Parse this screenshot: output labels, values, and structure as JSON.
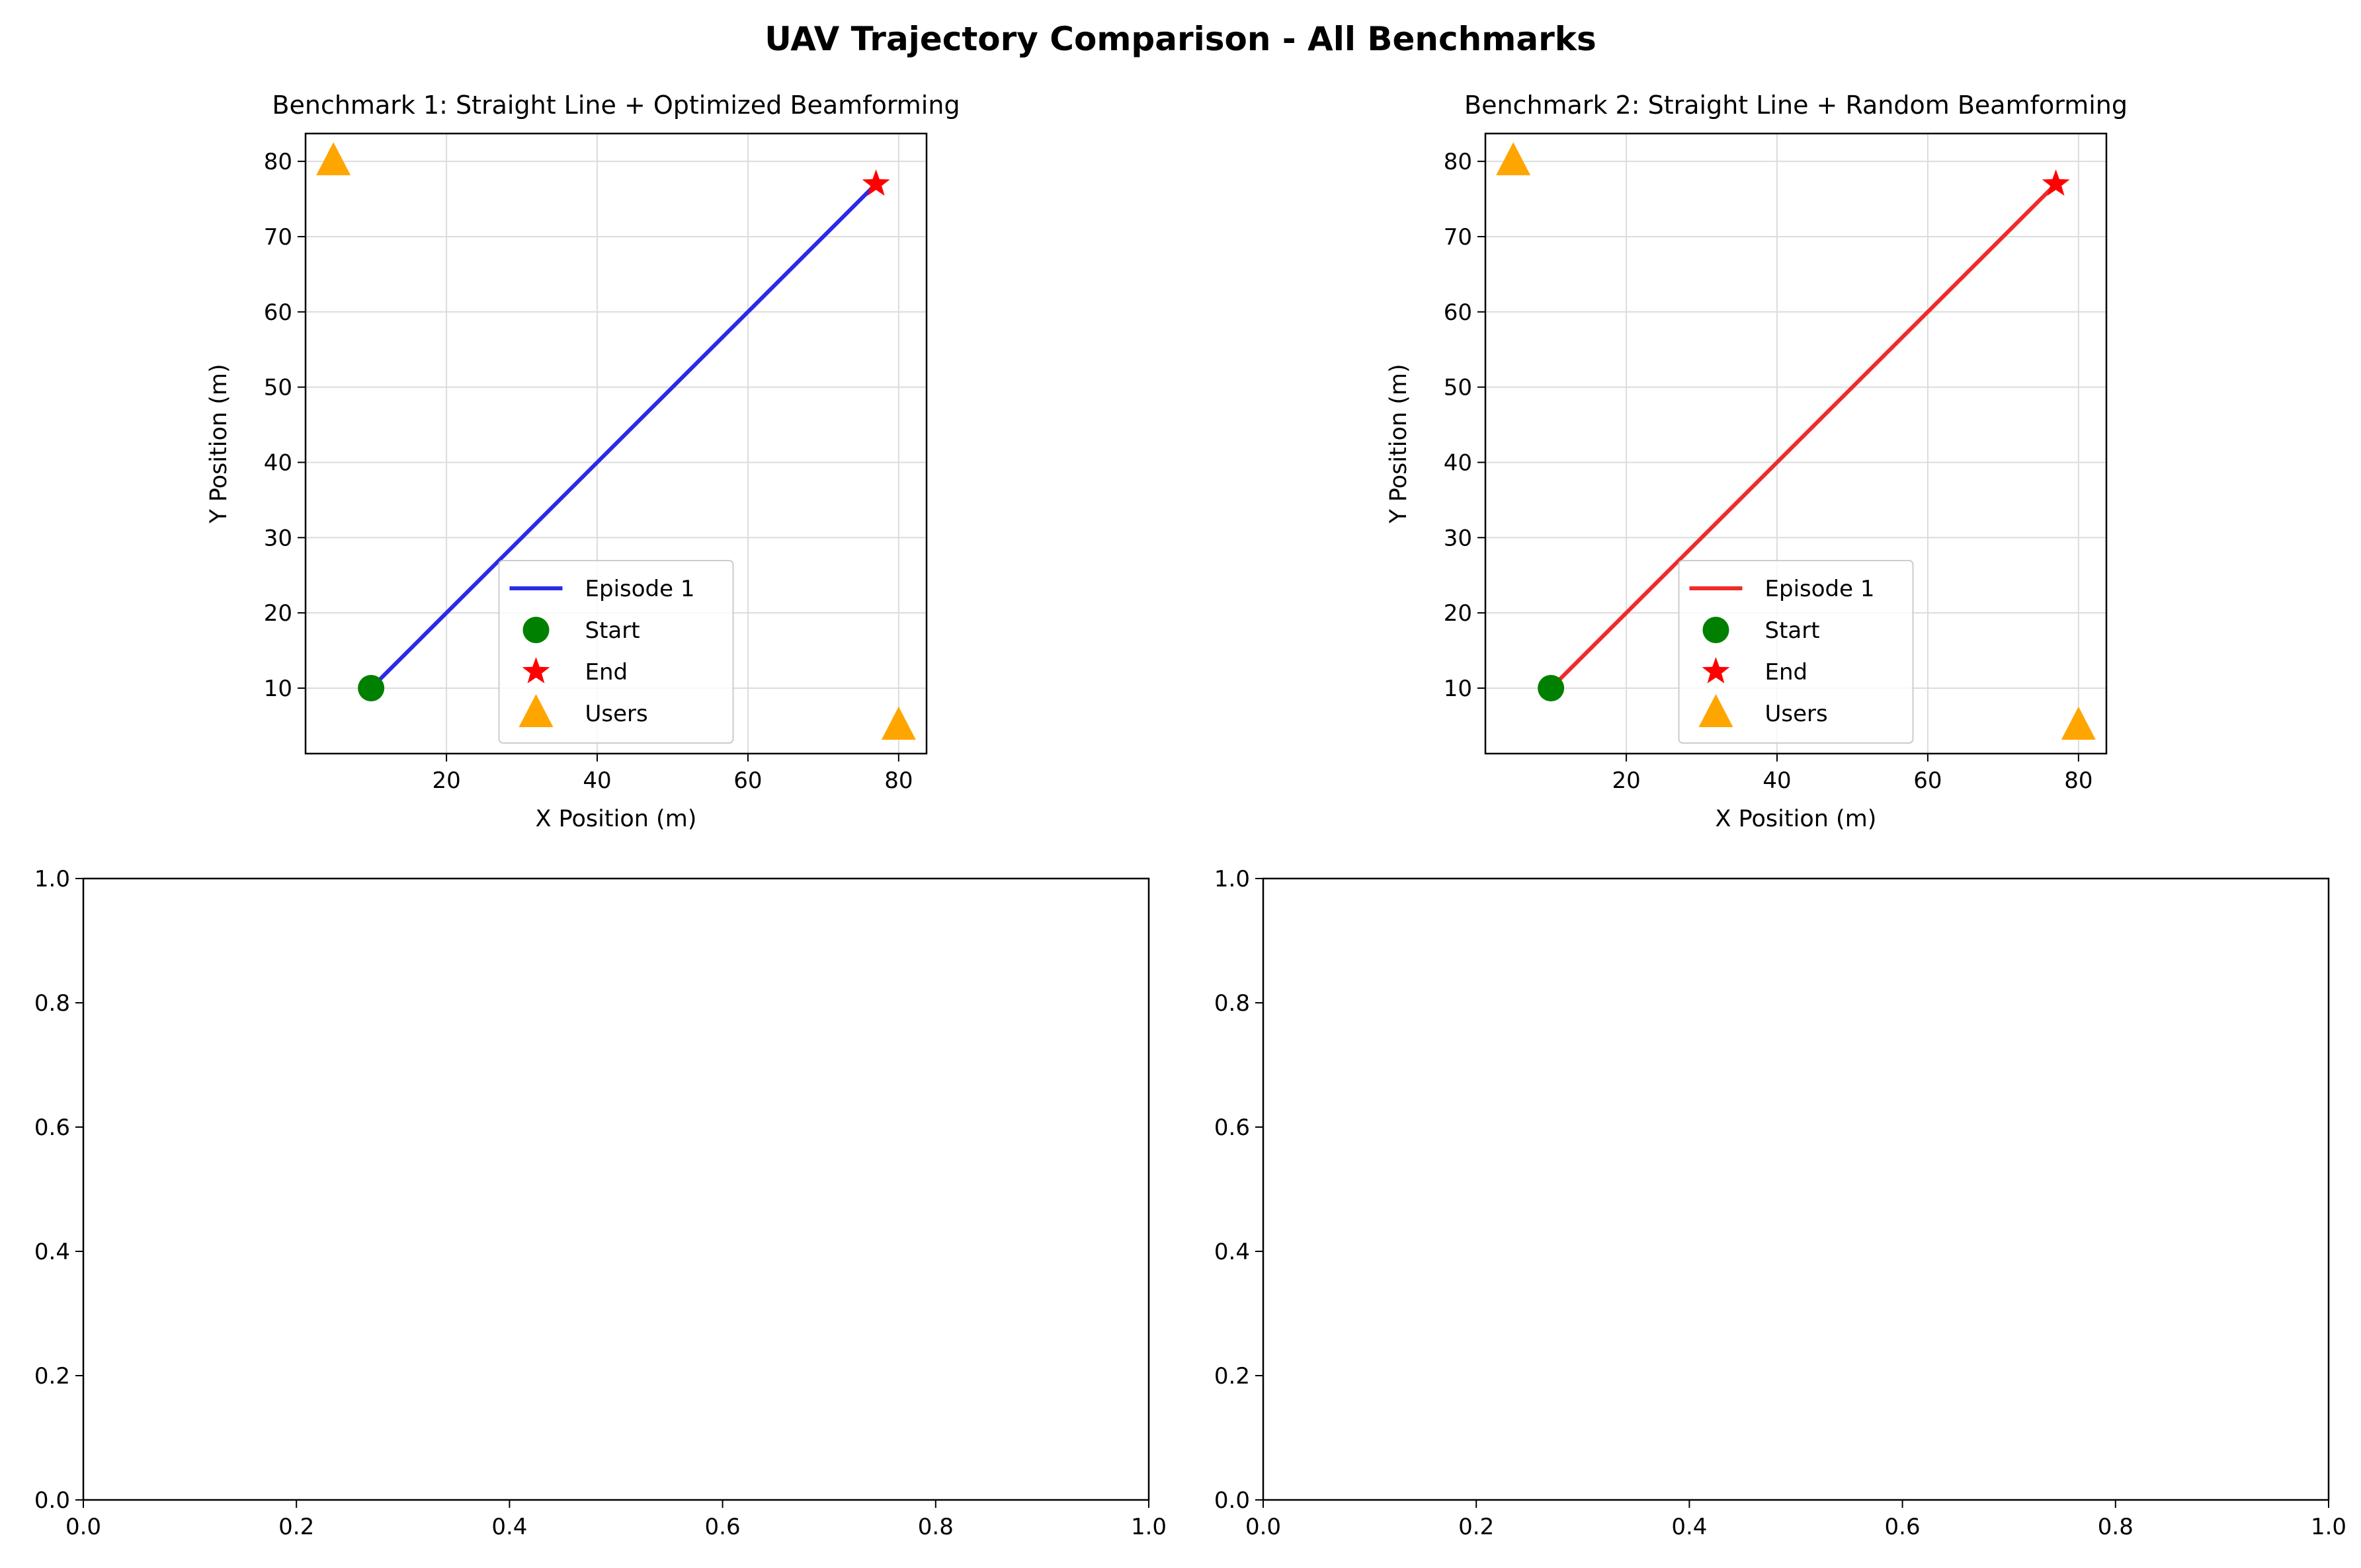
{
  "figure": {
    "title": "UAV Trajectory Comparison - All Benchmarks"
  },
  "colors": {
    "start": "#008000",
    "end": "#ff0000",
    "users": "#ffa500",
    "grid": "#dcdcdc"
  },
  "chart_data": [
    {
      "type": "line",
      "title": "Benchmark 1: Straight Line + Optimized Beamforming",
      "xlabel": "X Position (m)",
      "ylabel": "Y Position (m)",
      "xlim": [
        1.3,
        83.7
      ],
      "ylim": [
        1.3,
        83.7
      ],
      "xticks": [
        20,
        40,
        60,
        80
      ],
      "yticks": [
        10,
        20,
        30,
        40,
        50,
        60,
        70,
        80
      ],
      "grid": true,
      "legend_position": "lower center",
      "legend": [
        "Episode 1",
        "Start",
        "End",
        "Users"
      ],
      "series": [
        {
          "name": "Episode 1",
          "color": "#2a2ae8",
          "x": [
            10,
            77
          ],
          "y": [
            10,
            77
          ]
        }
      ],
      "start": {
        "name": "Start",
        "x": 10,
        "y": 10
      },
      "end": {
        "name": "End",
        "x": 77,
        "y": 77
      },
      "users": {
        "name": "Users",
        "points": [
          [
            5,
            80
          ],
          [
            80,
            5
          ]
        ]
      }
    },
    {
      "type": "line",
      "title": "Benchmark 2: Straight Line + Random Beamforming",
      "xlabel": "X Position (m)",
      "ylabel": "Y Position (m)",
      "xlim": [
        1.3,
        83.7
      ],
      "ylim": [
        1.3,
        83.7
      ],
      "xticks": [
        20,
        40,
        60,
        80
      ],
      "yticks": [
        10,
        20,
        30,
        40,
        50,
        60,
        70,
        80
      ],
      "grid": true,
      "legend_position": "lower center",
      "legend": [
        "Episode 1",
        "Start",
        "End",
        "Users"
      ],
      "series": [
        {
          "name": "Episode 1",
          "color": "#f02a2a",
          "x": [
            10,
            77
          ],
          "y": [
            10,
            77
          ]
        }
      ],
      "start": {
        "name": "Start",
        "x": 10,
        "y": 10
      },
      "end": {
        "name": "End",
        "x": 77,
        "y": 77
      },
      "users": {
        "name": "Users",
        "points": [
          [
            5,
            80
          ],
          [
            80,
            5
          ]
        ]
      }
    },
    {
      "type": "line",
      "title": "",
      "xlim": [
        0,
        1
      ],
      "ylim": [
        0,
        1
      ],
      "xticks": [
        "0.0",
        "0.2",
        "0.4",
        "0.6",
        "0.8",
        "1.0"
      ],
      "yticks": [
        "0.0",
        "0.2",
        "0.4",
        "0.6",
        "0.8",
        "1.0"
      ],
      "grid": false
    },
    {
      "type": "line",
      "title": "",
      "xlim": [
        0,
        1
      ],
      "ylim": [
        0,
        1
      ],
      "xticks": [
        "0.0",
        "0.2",
        "0.4",
        "0.6",
        "0.8",
        "1.0"
      ],
      "yticks": [
        "0.0",
        "0.2",
        "0.4",
        "0.6",
        "0.8",
        "1.0"
      ],
      "grid": false
    }
  ]
}
